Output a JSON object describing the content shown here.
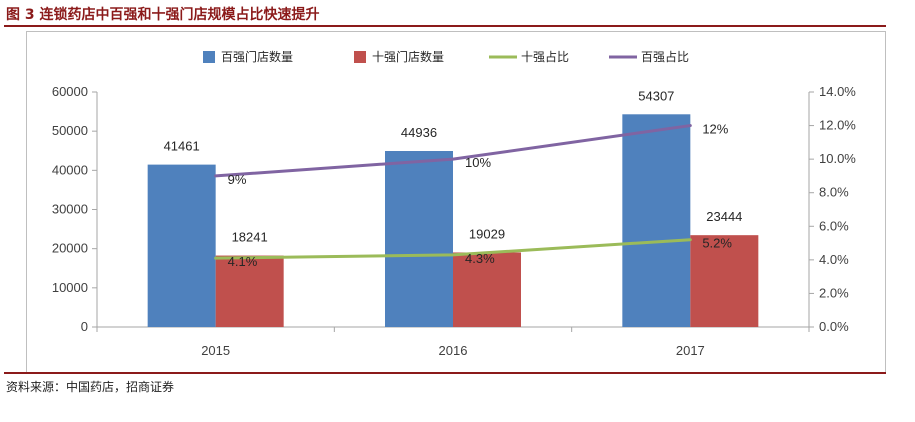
{
  "figure": {
    "title": "图 3 连锁药店中百强和十强门店规模占比快速提升",
    "source": "资料来源：中国药店，招商证券"
  },
  "colors": {
    "top100_bar": "#4f81bd",
    "top10_bar": "#c0504d",
    "top10_ratio_line": "#9bbb59",
    "top100_ratio_line": "#8064a2",
    "title_accent": "#8b1a1a"
  },
  "chart_data": {
    "type": "bar",
    "categories": [
      "2015",
      "2016",
      "2017"
    ],
    "series": [
      {
        "name": "百强门店数量",
        "type": "bar",
        "axis": "left",
        "values": [
          41461,
          44936,
          54307
        ],
        "labels": [
          "41461",
          "44936",
          "54307"
        ]
      },
      {
        "name": "十强门店数量",
        "type": "bar",
        "axis": "left",
        "values": [
          18241,
          19029,
          23444
        ],
        "labels": [
          "18241",
          "19029",
          "23444"
        ]
      },
      {
        "name": "十强占比",
        "type": "line",
        "axis": "right",
        "values": [
          4.1,
          4.3,
          5.2
        ],
        "labels": [
          "4.1%",
          "4.3%",
          "5.2%"
        ]
      },
      {
        "name": "百强占比",
        "type": "line",
        "axis": "right",
        "values": [
          9,
          10,
          12
        ],
        "labels": [
          "9%",
          "10%",
          "12%"
        ]
      }
    ],
    "y_left": {
      "min": 0,
      "max": 60000,
      "step": 10000,
      "ticks": [
        "0",
        "10000",
        "20000",
        "30000",
        "40000",
        "50000",
        "60000"
      ]
    },
    "y_right": {
      "min": 0,
      "max": 14,
      "step": 2,
      "ticks": [
        "0.0%",
        "2.0%",
        "4.0%",
        "6.0%",
        "8.0%",
        "10.0%",
        "12.0%",
        "14.0%"
      ]
    },
    "legend_position": "top",
    "grid": false
  }
}
